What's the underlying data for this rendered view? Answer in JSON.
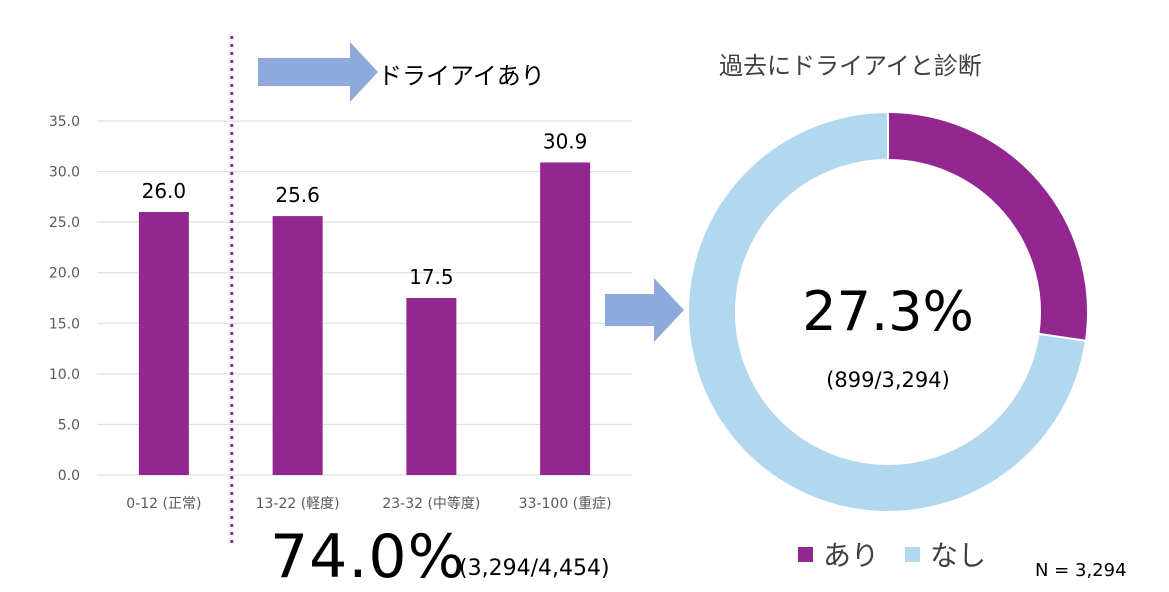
{
  "bar_banner": "ドライアイあり",
  "bar_footer": {
    "percent": "74.0%",
    "fraction": "(3,294/4,454)"
  },
  "pie_title": "過去にドライアイと診断",
  "pie_center": {
    "percent": "27.3%",
    "fraction": "(899/3,294)"
  },
  "n_label": "N = 3,294",
  "colors": {
    "purple": "#92278F",
    "light_blue": "#B2D8F0",
    "arrow": "#8EA9DB",
    "grid": "#D9D9D9",
    "tick_text": "#595959"
  },
  "chart_data": [
    {
      "type": "bar",
      "categories": [
        "0-12 (正常)",
        "13-22 (軽度)",
        "23-32 (中等度)",
        "33-100 (重症)"
      ],
      "values": [
        26.0,
        25.6,
        17.5,
        30.9
      ],
      "data_labels": [
        "26.0",
        "25.6",
        "17.5",
        "30.9"
      ],
      "ylim": [
        0,
        35
      ],
      "yticks": [
        "0.0",
        "5.0",
        "10.0",
        "15.0",
        "20.0",
        "25.0",
        "30.0",
        "35.0"
      ],
      "grid": true,
      "color": "#92278F",
      "divider_after_category": 0
    },
    {
      "type": "pie",
      "donut": true,
      "labels": [
        "あり",
        "なし"
      ],
      "values": [
        27.3,
        72.7
      ],
      "colors": [
        "#92278F",
        "#B2D8F0"
      ],
      "legend": "bottom"
    }
  ]
}
